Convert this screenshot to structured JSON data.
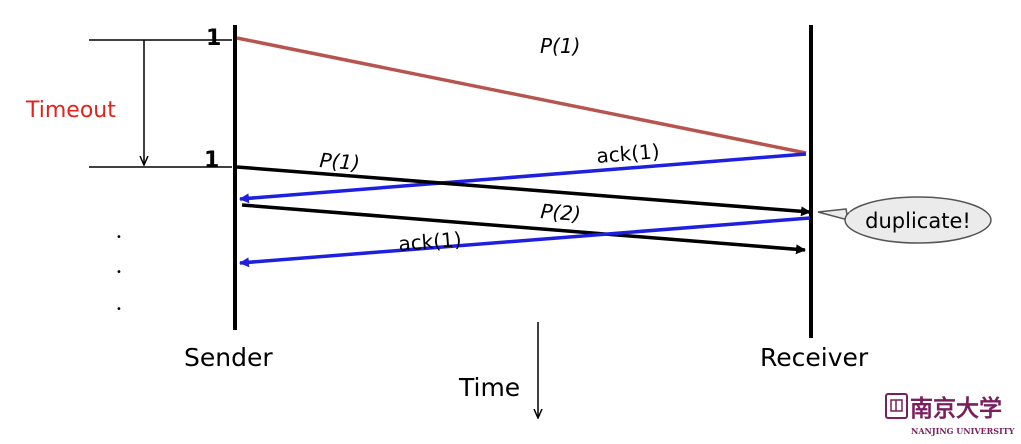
{
  "diagram": {
    "timeout_label": "Timeout",
    "sender_tick_1": "1",
    "sender_tick_2": "1",
    "msg_p1_first": "P(1)",
    "msg_ack1_first": "ack(1)",
    "msg_p1_resend": "P(1)",
    "msg_p2": "P(2)",
    "msg_ack1_second": "ack(1)",
    "duplicate_callout": "duplicate!",
    "sender_label": "Sender",
    "receiver_label": "Receiver",
    "time_label": "Time",
    "ellipsis_dots": [
      "•",
      "•",
      "•"
    ]
  },
  "logo": {
    "chinese_name": "南京大学",
    "english_name": "NANJING UNIVERSITY"
  },
  "colors": {
    "timeout_text": "#e8201a",
    "first_packet": "#b85450",
    "ack": "#1f1fe0",
    "line": "#000000",
    "logo": "#7a1f5e"
  }
}
